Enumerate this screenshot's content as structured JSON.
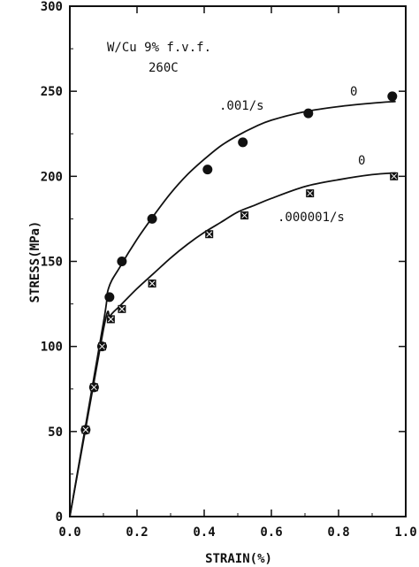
{
  "chart_data": {
    "type": "scatter",
    "title_lines": [
      "W/Cu  9% f.v.f.",
      "260C"
    ],
    "xlabel": "STRAIN(%)",
    "ylabel": "STRESS(MPa)",
    "xlim": [
      0.0,
      1.0
    ],
    "ylim": [
      0,
      300
    ],
    "x_ticks": [
      0.0,
      0.2,
      0.4,
      0.6,
      0.8,
      1.0
    ],
    "x_tick_labels": [
      "0.0",
      "0.2",
      "0.4",
      "0.6",
      "0.8",
      "1.0"
    ],
    "y_ticks": [
      0,
      50,
      100,
      150,
      200,
      250,
      300
    ],
    "y_tick_labels": [
      "0",
      "50",
      "100",
      "150",
      "200",
      "250",
      "300"
    ],
    "grid": false,
    "series": [
      {
        "name": ".001/s",
        "marker": "circle",
        "points": [
          {
            "x": 0.047,
            "y": 51
          },
          {
            "x": 0.072,
            "y": 76
          },
          {
            "x": 0.096,
            "y": 100
          },
          {
            "x": 0.118,
            "y": 129
          },
          {
            "x": 0.155,
            "y": 150
          },
          {
            "x": 0.245,
            "y": 175
          },
          {
            "x": 0.41,
            "y": 204
          },
          {
            "x": 0.515,
            "y": 220
          },
          {
            "x": 0.71,
            "y": 237
          },
          {
            "x": 0.96,
            "y": 247
          }
        ],
        "fit_curve": [
          {
            "x": 0.0,
            "y": 0
          },
          {
            "x": 0.1,
            "y": 114
          },
          {
            "x": 0.115,
            "y": 134
          },
          {
            "x": 0.15,
            "y": 147
          },
          {
            "x": 0.2,
            "y": 163
          },
          {
            "x": 0.25,
            "y": 177
          },
          {
            "x": 0.3,
            "y": 190
          },
          {
            "x": 0.35,
            "y": 201
          },
          {
            "x": 0.4,
            "y": 210
          },
          {
            "x": 0.45,
            "y": 218
          },
          {
            "x": 0.5,
            "y": 224
          },
          {
            "x": 0.55,
            "y": 229
          },
          {
            "x": 0.6,
            "y": 233
          },
          {
            "x": 0.7,
            "y": 238
          },
          {
            "x": 0.8,
            "y": 241
          },
          {
            "x": 0.9,
            "y": 243
          },
          {
            "x": 0.97,
            "y": 244
          }
        ],
        "end_label": "0"
      },
      {
        "name": ".000001/s",
        "marker": "square",
        "points": [
          {
            "x": 0.047,
            "y": 51
          },
          {
            "x": 0.072,
            "y": 76
          },
          {
            "x": 0.096,
            "y": 100
          },
          {
            "x": 0.122,
            "y": 116
          },
          {
            "x": 0.155,
            "y": 122
          },
          {
            "x": 0.245,
            "y": 137
          },
          {
            "x": 0.415,
            "y": 166
          },
          {
            "x": 0.52,
            "y": 177
          },
          {
            "x": 0.715,
            "y": 190
          },
          {
            "x": 0.965,
            "y": 200
          }
        ],
        "fit_curve": [
          {
            "x": 0.0,
            "y": 0
          },
          {
            "x": 0.1,
            "y": 110
          },
          {
            "x": 0.12,
            "y": 118
          },
          {
            "x": 0.15,
            "y": 124
          },
          {
            "x": 0.2,
            "y": 134
          },
          {
            "x": 0.25,
            "y": 143
          },
          {
            "x": 0.3,
            "y": 152
          },
          {
            "x": 0.35,
            "y": 160
          },
          {
            "x": 0.4,
            "y": 167
          },
          {
            "x": 0.45,
            "y": 173
          },
          {
            "x": 0.5,
            "y": 179
          },
          {
            "x": 0.55,
            "y": 183
          },
          {
            "x": 0.6,
            "y": 187
          },
          {
            "x": 0.7,
            "y": 194
          },
          {
            "x": 0.8,
            "y": 198
          },
          {
            "x": 0.9,
            "y": 201
          },
          {
            "x": 0.97,
            "y": 202
          }
        ],
        "end_label": "0"
      }
    ]
  }
}
